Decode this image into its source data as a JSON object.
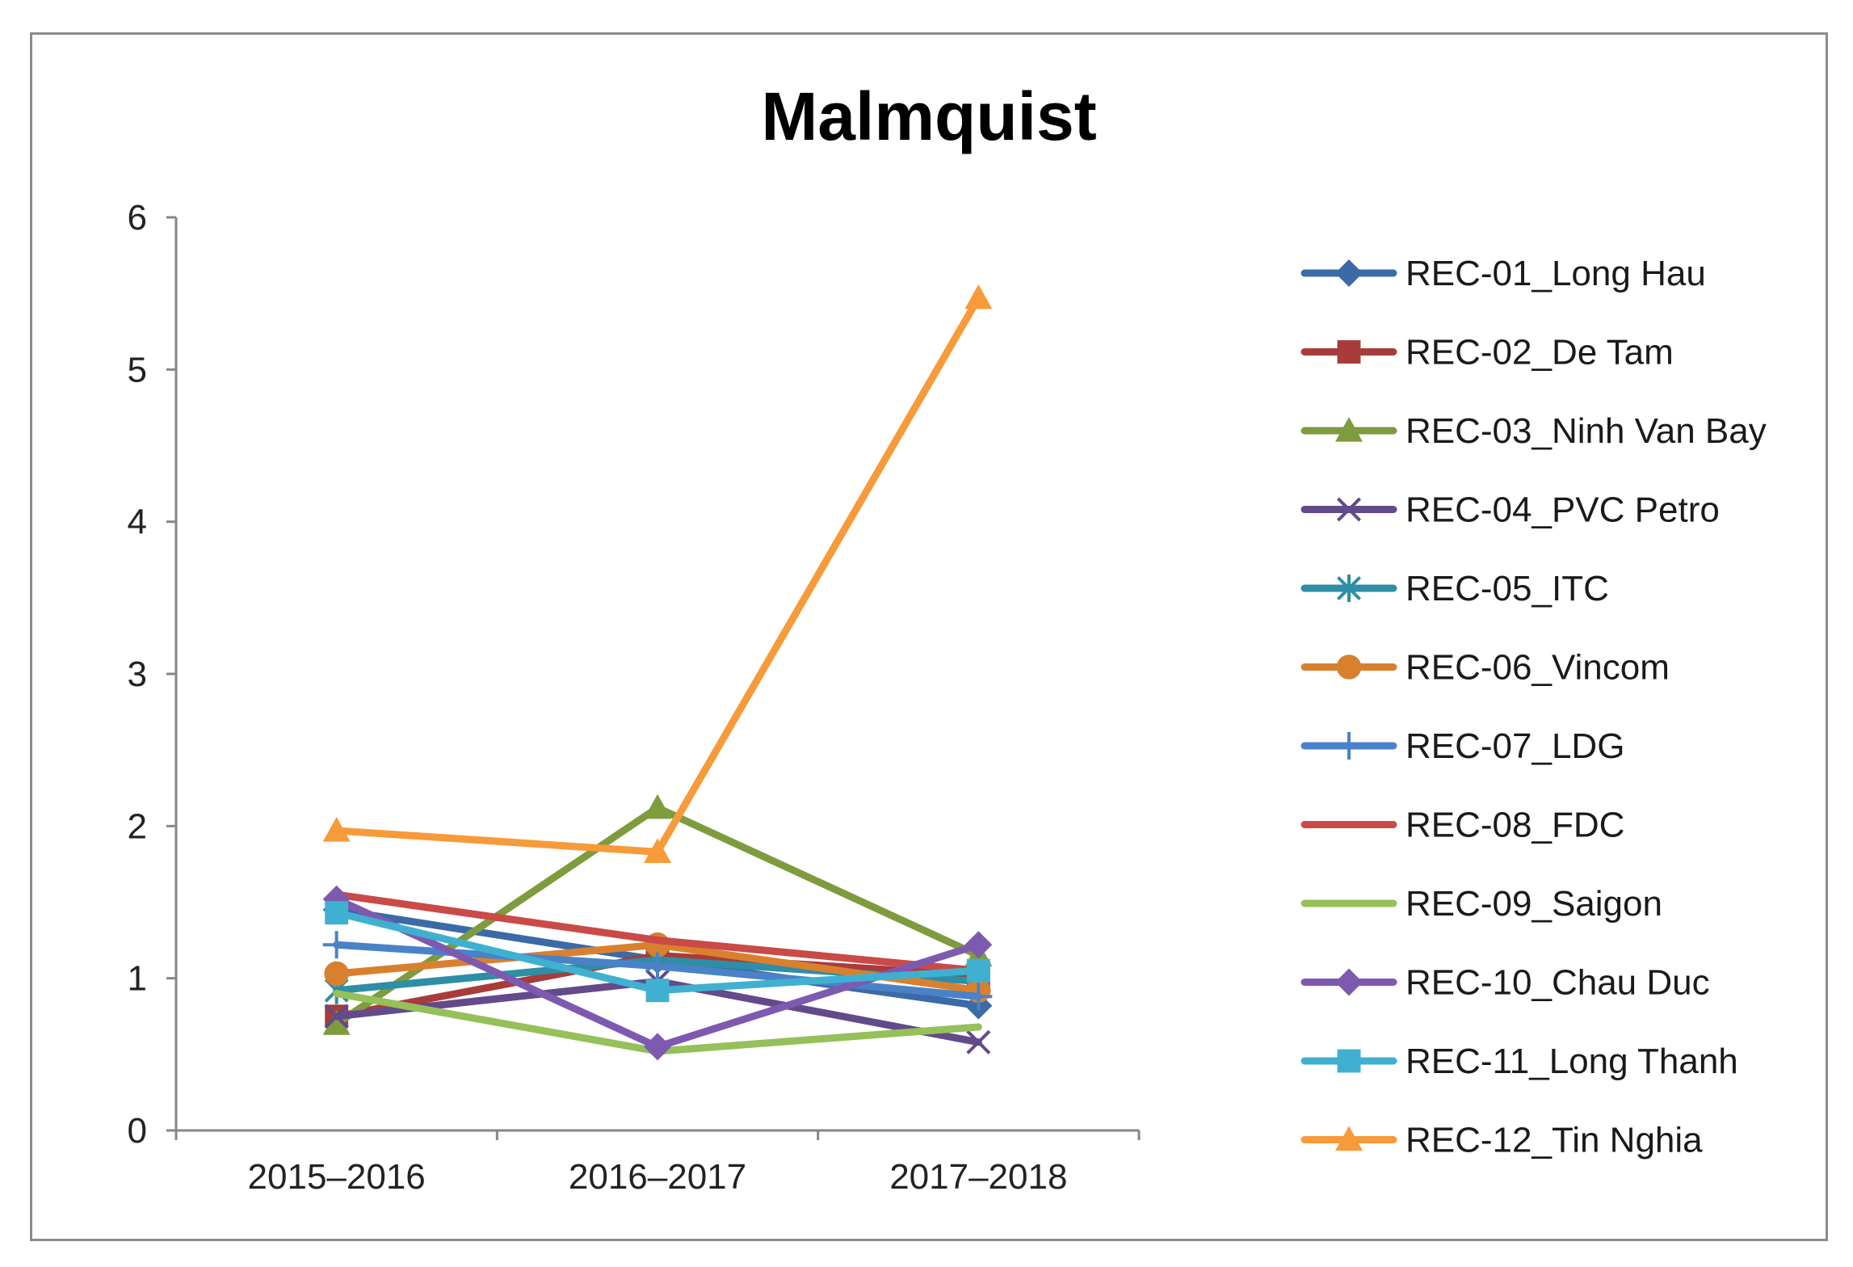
{
  "chart_data": {
    "type": "line",
    "title": "Malmquist",
    "xlabel": "",
    "ylabel": "",
    "categories": [
      "2015–2016",
      "2016–2017",
      "2017–2018"
    ],
    "ylim": [
      0,
      6
    ],
    "yticks": [
      0,
      1,
      2,
      3,
      4,
      5,
      6
    ],
    "grid": false,
    "legend_position": "right",
    "series": [
      {
        "name": "REC-01_Long Hau",
        "values": [
          1.45,
          1.12,
          0.82
        ],
        "color": "#3C6AA6",
        "marker": "diamond"
      },
      {
        "name": "REC-02_De Tam",
        "values": [
          0.75,
          1.15,
          1.02
        ],
        "color": "#A83C3A",
        "marker": "square"
      },
      {
        "name": "REC-03_Ninh Van Bay",
        "values": [
          0.7,
          2.12,
          1.15
        ],
        "color": "#7E9B3E",
        "marker": "triangle"
      },
      {
        "name": "REC-04_PVC Petro",
        "values": [
          0.75,
          0.98,
          0.58
        ],
        "color": "#634A8A",
        "marker": "x"
      },
      {
        "name": "REC-05_ITC",
        "values": [
          0.92,
          1.12,
          0.98
        ],
        "color": "#2E8EA6",
        "marker": "star"
      },
      {
        "name": "REC-06_Vincom",
        "values": [
          1.03,
          1.22,
          0.92
        ],
        "color": "#D9802F",
        "marker": "circle"
      },
      {
        "name": "REC-07_LDG",
        "values": [
          1.22,
          1.08,
          0.88
        ],
        "color": "#4A82C8",
        "marker": "plus"
      },
      {
        "name": "REC-08_FDC",
        "values": [
          1.55,
          1.25,
          1.05
        ],
        "color": "#C94A47",
        "marker": "none"
      },
      {
        "name": "REC-09_Saigon",
        "values": [
          0.9,
          0.52,
          0.68
        ],
        "color": "#95C05A",
        "marker": "none"
      },
      {
        "name": "REC-10_Chau Duc",
        "values": [
          1.52,
          0.55,
          1.22
        ],
        "color": "#7D5AB0",
        "marker": "diamond"
      },
      {
        "name": "REC-11_Long Thanh",
        "values": [
          1.43,
          0.92,
          1.05
        ],
        "color": "#40B0D0",
        "marker": "square"
      },
      {
        "name": "REC-12_Tin Nghia",
        "values": [
          1.97,
          1.83,
          5.47
        ],
        "color": "#F79A3A",
        "marker": "triangle"
      }
    ]
  }
}
